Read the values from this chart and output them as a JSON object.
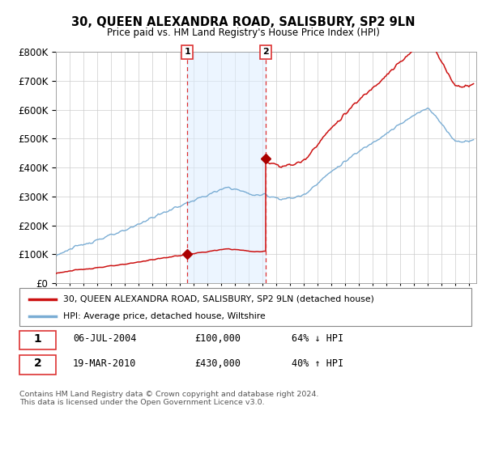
{
  "title": "30, QUEEN ALEXANDRA ROAD, SALISBURY, SP2 9LN",
  "subtitle": "Price paid vs. HM Land Registry's House Price Index (HPI)",
  "legend_line1": "30, QUEEN ALEXANDRA ROAD, SALISBURY, SP2 9LN (detached house)",
  "legend_line2": "HPI: Average price, detached house, Wiltshire",
  "transaction1_date": "06-JUL-2004",
  "transaction1_price": 100000,
  "transaction1_label": "64% ↓ HPI",
  "transaction2_date": "19-MAR-2010",
  "transaction2_price": 430000,
  "transaction2_label": "40% ↑ HPI",
  "footnote": "Contains HM Land Registry data © Crown copyright and database right 2024.\nThis data is licensed under the Open Government Licence v3.0.",
  "hpi_color": "#7aadd4",
  "price_color": "#cc1111",
  "marker_color": "#aa0000",
  "shade_color": "#ddeeff",
  "vline_color": "#dd3333",
  "ylim_max": 800000,
  "yticks": [
    0,
    100000,
    200000,
    300000,
    400000,
    500000,
    600000,
    700000,
    800000
  ],
  "t1_year": 2004.54,
  "t2_year": 2010.22
}
